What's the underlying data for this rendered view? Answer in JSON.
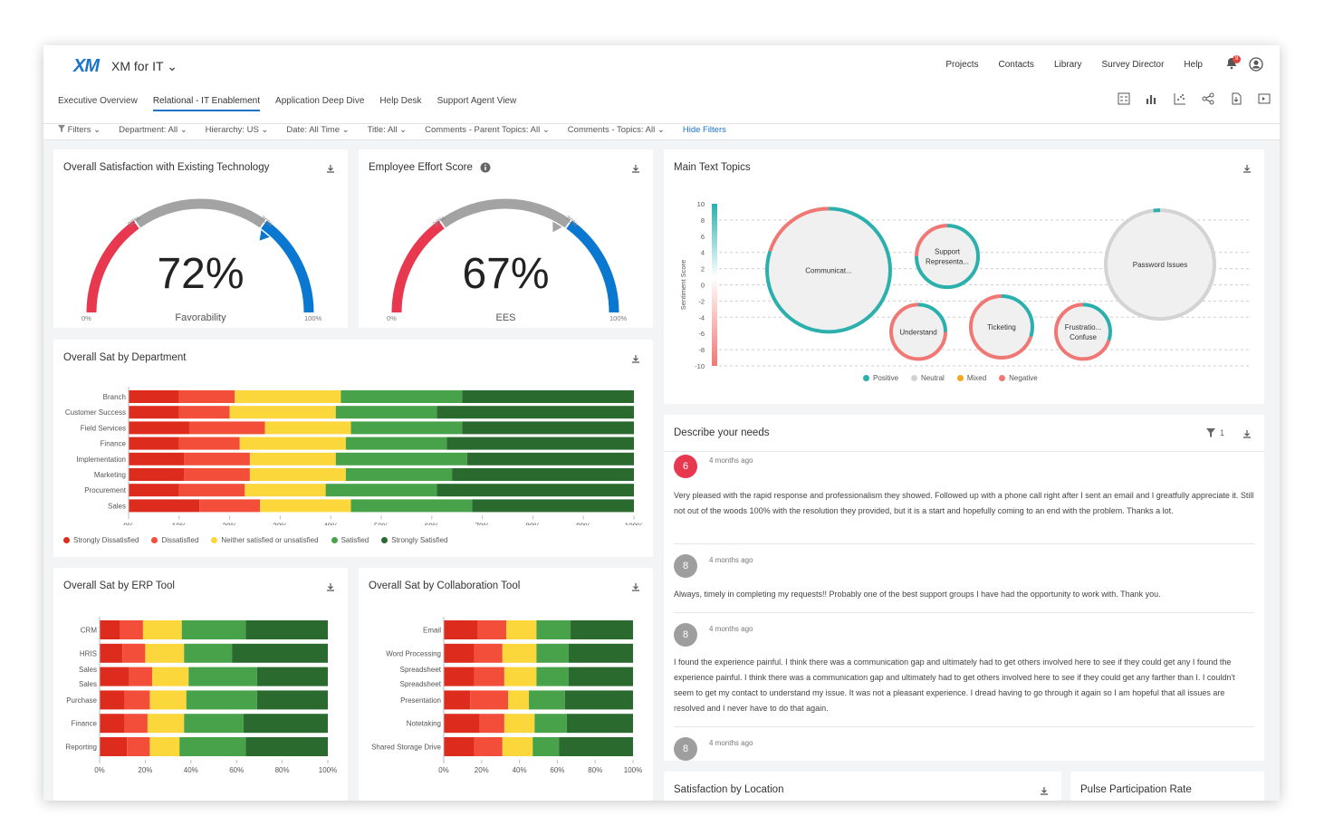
{
  "app": {
    "logo": "XM",
    "title": "XM for IT ⌄"
  },
  "topnav": [
    "Projects",
    "Contacts",
    "Library",
    "Survey Director",
    "Help"
  ],
  "notifications": {
    "count": "9"
  },
  "tabs": [
    "Executive Overview",
    "Relational - IT Enablement",
    "Application Deep Dive",
    "Help Desk",
    "Support Agent View"
  ],
  "active_tab": "Relational - IT Enablement",
  "filters": {
    "label": "Filters ⌄",
    "items": [
      "Department: All ⌄",
      "Hierarchy: US ⌄",
      "Date: All Time ⌄",
      "Title: All ⌄",
      "Comments - Parent Topics: All ⌄",
      "Comments - Topics: All ⌄"
    ],
    "hide": "Hide Filters"
  },
  "gauge1": {
    "title": "Overall Satisfaction with Existing Technology",
    "value": "72%",
    "label": "Favorability",
    "min": "0%",
    "max": "100%",
    "t1": "30%",
    "t2": "70%",
    "fraction": 0.72
  },
  "gauge2": {
    "title": "Employee Effort Score",
    "value": "67%",
    "label": "EES",
    "min": "0%",
    "max": "100%",
    "t1": "30%",
    "t2": "70%",
    "fraction": 0.67
  },
  "colors": {
    "sd": "#dd2b1d",
    "d": "#f24e3a",
    "n": "#fcd73b",
    "s": "#47a24a",
    "ss": "#2a6a2f",
    "pos": "#2bb0ad",
    "neu": "#d3d3d3",
    "mix": "#f5a623",
    "neg": "#f07874",
    "accent": "#1a73c9"
  },
  "dept_chart": {
    "title": "Overall Sat by Department",
    "legend": [
      "Strongly Dissatisfied",
      "Dissatisfied",
      "Neither satisfied or unsatisfied",
      "Satisfied",
      "Strongly Satisfied"
    ],
    "ticks": [
      "0%",
      "10%",
      "20%",
      "30%",
      "40%",
      "50%",
      "60%",
      "70%",
      "80%",
      "90%",
      "100%"
    ]
  },
  "erp_chart": {
    "title": "Overall Sat by ERP Tool",
    "ticks": [
      "0%",
      "20%",
      "40%",
      "60%",
      "80%",
      "100%"
    ]
  },
  "collab_chart": {
    "title": "Overall Sat by Collaboration Tool",
    "ticks": [
      "0%",
      "20%",
      "40%",
      "60%",
      "80%",
      "100%"
    ]
  },
  "chart_data": [
    {
      "type": "bar",
      "orientation": "horizontal",
      "stacked": true,
      "title": "Overall Sat by Department",
      "categories": [
        "Branch",
        "Customer Success",
        "Field Services",
        "Finance",
        "Implementation",
        "Marketing",
        "Procurement",
        "Sales"
      ],
      "series": [
        {
          "name": "Strongly Dissatisfied",
          "values": [
            10,
            10,
            12,
            10,
            11,
            11,
            10,
            14
          ]
        },
        {
          "name": "Dissatisfied",
          "values": [
            11,
            10,
            15,
            12,
            13,
            13,
            13,
            12
          ]
        },
        {
          "name": "Neither satisfied or unsatisfied",
          "values": [
            21,
            21,
            17,
            21,
            17,
            19,
            16,
            18
          ]
        },
        {
          "name": "Satisfied",
          "values": [
            24,
            20,
            22,
            20,
            26,
            21,
            22,
            24
          ]
        },
        {
          "name": "Strongly Satisfied",
          "values": [
            34,
            39,
            34,
            37,
            33,
            36,
            39,
            32
          ]
        }
      ],
      "xlim": [
        0,
        100
      ]
    },
    {
      "type": "bar",
      "orientation": "horizontal",
      "stacked": true,
      "title": "Overall Sat by ERP Tool",
      "categories": [
        "CRM",
        "HRIS",
        "Sales\nSales",
        "Purchase",
        "Finance",
        "Reporting"
      ],
      "series": [
        {
          "name": "Strongly Dissatisfied",
          "values": [
            9,
            10,
            13,
            11,
            11,
            12
          ]
        },
        {
          "name": "Dissatisfied",
          "values": [
            10,
            10,
            10,
            11,
            10,
            10
          ]
        },
        {
          "name": "Neither satisfied or unsatisfied",
          "values": [
            17,
            17,
            16,
            16,
            16,
            13
          ]
        },
        {
          "name": "Satisfied",
          "values": [
            28,
            21,
            30,
            31,
            26,
            29
          ]
        },
        {
          "name": "Strongly Satisfied",
          "values": [
            36,
            42,
            31,
            31,
            37,
            36
          ]
        }
      ],
      "xlim": [
        0,
        100
      ]
    },
    {
      "type": "bar",
      "orientation": "horizontal",
      "stacked": true,
      "title": "Overall Sat by Collaboration Tool",
      "categories": [
        "Email",
        "Word Processing",
        "Spreadsheet\nSpreadsheet",
        "Presentation",
        "Notetaking",
        "Shared Storage Drive"
      ],
      "series": [
        {
          "name": "Strongly Dissatisfied",
          "values": [
            18,
            16,
            16,
            14,
            19,
            16
          ]
        },
        {
          "name": "Dissatisfied",
          "values": [
            15,
            15,
            16,
            20,
            13,
            15
          ]
        },
        {
          "name": "Neither satisfied or unsatisfied",
          "values": [
            16,
            18,
            17,
            11,
            16,
            16
          ]
        },
        {
          "name": "Satisfied",
          "values": [
            18,
            17,
            17,
            19,
            17,
            14
          ]
        },
        {
          "name": "Strongly Satisfied",
          "values": [
            33,
            34,
            34,
            36,
            35,
            39
          ]
        }
      ],
      "xlim": [
        0,
        100
      ]
    },
    {
      "type": "scatter",
      "title": "Main Text Topics",
      "ylabel": "Sentiment Score",
      "ylim": [
        -10,
        10
      ],
      "yticks": [
        10,
        8,
        6,
        4,
        2,
        0,
        -2,
        -4,
        -6,
        -8,
        -10
      ],
      "legend": [
        "Positive",
        "Neutral",
        "Mixed",
        "Negative"
      ],
      "points": [
        {
          "label": "Communicat...",
          "y": 1.8,
          "size": 3.4,
          "positive": 0.8,
          "negative": 0.2
        },
        {
          "label": "Support\nRepresenta...",
          "y": 3.5,
          "size": 1.7,
          "positive": 0.75,
          "negative": 0.25
        },
        {
          "label": "Understand",
          "y": -5.8,
          "size": 1.5,
          "positive": 0.25,
          "negative": 0.75
        },
        {
          "label": "Ticketing",
          "y": -5.2,
          "size": 1.7,
          "positive": 0.3,
          "negative": 0.7
        },
        {
          "label": "Frustratio...\nConfuse",
          "y": -5.8,
          "size": 1.5,
          "positive": 0.3,
          "negative": 0.7
        },
        {
          "label": "Password Issues",
          "y": 2.5,
          "size": 3.0,
          "positive": 0.02,
          "neutral": 0.98
        }
      ]
    }
  ],
  "topics": {
    "title": "Main Text Topics"
  },
  "comments": {
    "title": "Describe your needs",
    "filter_count": "1",
    "items": [
      {
        "score": "6",
        "color": "#e8384f",
        "date": "4 months ago",
        "text": "Very pleased with the rapid response and professionalism they showed. Followed up with a phone call right after I sent an email and I greatfully appreciate it. Still not out of the woods 100% with the resolution they provided, but it is a start and hopefully coming to an end with the problem. Thanks a lot."
      },
      {
        "score": "8",
        "color": "#9e9e9e",
        "date": "4 months ago",
        "text": "Always, timely in completing my requests!! Probably one of the best support groups I have had the opportunity to work with. Thank you."
      },
      {
        "score": "8",
        "color": "#9e9e9e",
        "date": "4 months ago",
        "text": "I found the experience painful. I think there was a communication gap and ultimately had to get others involved here to see if they could get any I found the experience painful. I think there was a communication gap and ultimately had to get others involved here to see if they could get any farther than I. I couldn't seem to get my contact to understand my issue. It was not a pleasant experience. I dread having to go through it again so I am hopeful that all issues are resolved and I never have to do that again."
      },
      {
        "score": "8",
        "color": "#9e9e9e",
        "date": "4 months ago",
        "text": ""
      }
    ]
  },
  "location": {
    "title": "Satisfaction by Location"
  },
  "pulse": {
    "title": "Pulse Participation Rate"
  }
}
